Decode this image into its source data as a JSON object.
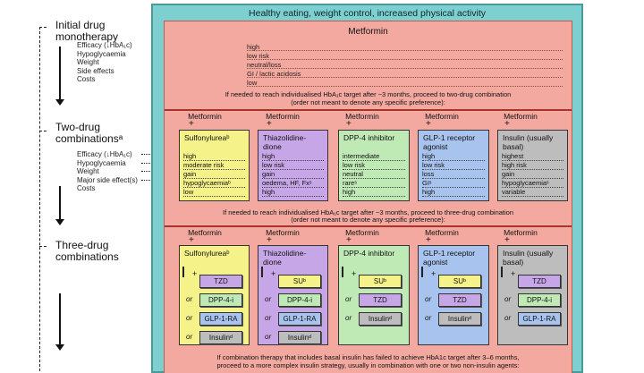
{
  "frame_title": "Healthy eating, weight control, increased physical activity",
  "stages": {
    "mono": [
      "Initial drug",
      "monotherapy"
    ],
    "two": [
      "Two-drug",
      "combinationsᵃ"
    ],
    "three": [
      "Three-drug",
      "combinations"
    ]
  },
  "mono_criteria": [
    "Efficacy (↓HbA₁c)",
    "Hypoglycaemia",
    "Weight",
    "Side effects",
    "Costs"
  ],
  "two_criteria": [
    "Efficacy (↓HbA₁c)",
    "Hypoglycaemia",
    "Weight",
    "Major side effect(s)",
    "Costs"
  ],
  "metformin": {
    "title": "Metformin",
    "values": [
      "high",
      "low risk",
      "neutral/loss",
      "GI / lactic acidosis",
      "low"
    ],
    "note1": "If needed to reach individualised HbA₁c target after ~3 months, proceed to two-drug combination",
    "note2": "(order not meant to denote any specific preference):"
  },
  "two_drug": {
    "prefix": "Metformin",
    "plus": "+",
    "columns": [
      {
        "name": "Sulfonylureaᵇ",
        "values": [
          "high",
          "moderate risk",
          "gain",
          "hypoglycaemiaᵇ",
          "low"
        ],
        "color": "#f6f28a"
      },
      {
        "name": "Thiazolidine-dione",
        "values": [
          "high",
          "low risk",
          "gain",
          "oedema, HF, Fxˢ",
          "high"
        ],
        "color": "#c7a6e8"
      },
      {
        "name": "DPP-4 inhibitor",
        "values": [
          "intermediate",
          "low risk",
          "neutral",
          "rareˢ",
          "high"
        ],
        "color": "#bfeab6"
      },
      {
        "name": "GLP-1 receptor agonist",
        "values": [
          "high",
          "low risk",
          "loss",
          "GIˢ",
          "high"
        ],
        "color": "#a8c4ee"
      },
      {
        "name": "Insulin (usually basal)",
        "values": [
          "highest",
          "high risk",
          "gain",
          "hypoglycaemiaˢ",
          "variable"
        ],
        "color": "#bdbdbd"
      }
    ],
    "note1": "If needed to reach individualised HbA₁c target after ~3 months, proceed to three-drug combination",
    "note2": "(order not meant to denote any specific preference):"
  },
  "three_drug": {
    "prefix": "Metformin",
    "plus": "+",
    "or_label": "or",
    "columns": [
      {
        "name": "Sulfonylureaᵇ",
        "options": [
          "TZD",
          "DPP-4-i",
          "GLP-1-RA",
          "Insulinᵈ"
        ]
      },
      {
        "name": "Thiazolidine-dione",
        "options": [
          "SUᵇ",
          "DPP-4-i",
          "GLP-1-RA",
          "Insulinᵈ"
        ]
      },
      {
        "name": "DPP-4 inhibitor",
        "options": [
          "SUᵇ",
          "TZD",
          "Insulinᵈ"
        ]
      },
      {
        "name": "GLP-1 receptor agonist",
        "options": [
          "SUᵇ",
          "TZD",
          "Insulinᵈ"
        ]
      },
      {
        "name": "Insulin (usually basal)",
        "options": [
          "TZD",
          "DPP-4-i",
          "GLP-1-RA"
        ]
      }
    ],
    "note1": "If combination therapy that includes basal insulin has failed to achieve HbA1c target after 3–6 months,",
    "note2": "proceed to a more complex insulin strategy, usually in combination with one or two non-insulin agents:"
  }
}
